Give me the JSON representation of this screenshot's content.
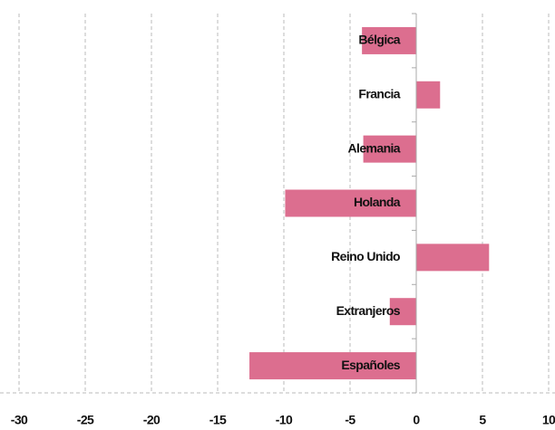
{
  "chart_data": {
    "type": "barh",
    "categories": [
      "Bélgica",
      "Francia",
      "Alemania",
      "Holanda",
      "Reino Unido",
      "Extranjeros",
      "Españoles"
    ],
    "values": [
      -4.1,
      1.8,
      -4.0,
      -9.9,
      5.5,
      -2.0,
      -12.6
    ],
    "color": "#dc6e8f",
    "xlim": [
      -30,
      10
    ],
    "xticks": [
      -30,
      -25,
      -20,
      -15,
      -10,
      -5,
      0,
      5,
      10
    ],
    "grid": true
  }
}
